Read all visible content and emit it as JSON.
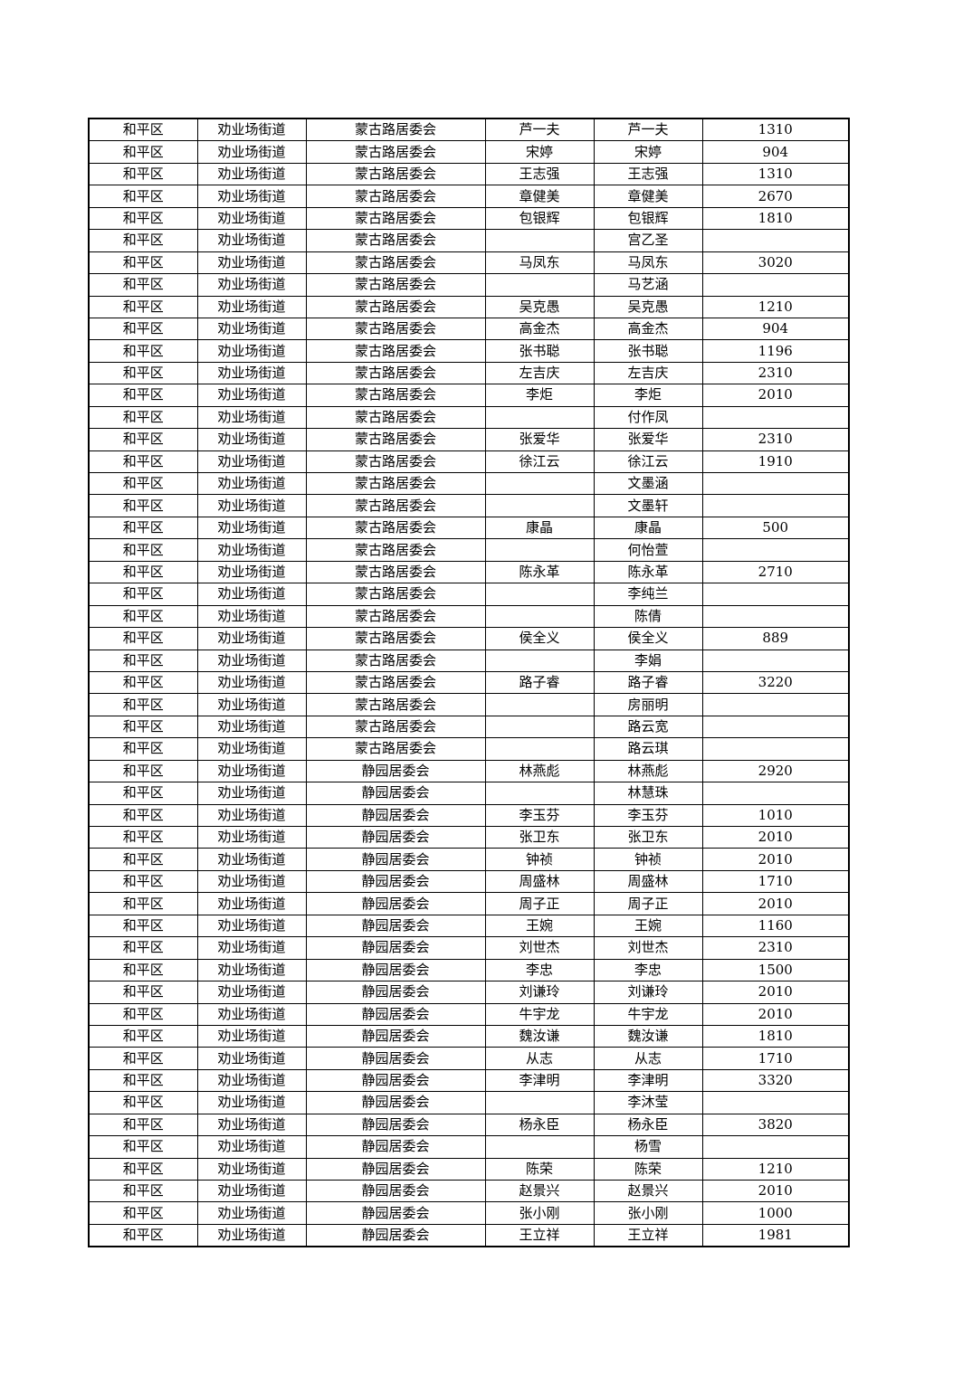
{
  "rows": [
    [
      "和平区",
      "劝业场街道",
      "蒙古路居委会",
      "芦一夫",
      "芦一夫",
      "1310"
    ],
    [
      "和平区",
      "劝业场街道",
      "蒙古路居委会",
      "宋婷",
      "宋婷",
      "904"
    ],
    [
      "和平区",
      "劝业场街道",
      "蒙古路居委会",
      "王志强",
      "王志强",
      "1310"
    ],
    [
      "和平区",
      "劝业场街道",
      "蒙古路居委会",
      "章健美",
      "章健美",
      "2670"
    ],
    [
      "和平区",
      "劝业场街道",
      "蒙古路居委会",
      "包银辉",
      "包银辉",
      "1810"
    ],
    [
      "和平区",
      "劝业场街道",
      "蒙古路居委会",
      "",
      "宫乙圣",
      ""
    ],
    [
      "和平区",
      "劝业场街道",
      "蒙古路居委会",
      "马凤东",
      "马凤东",
      "3020"
    ],
    [
      "和平区",
      "劝业场街道",
      "蒙古路居委会",
      "",
      "马艺涵",
      ""
    ],
    [
      "和平区",
      "劝业场街道",
      "蒙古路居委会",
      "吴克愚",
      "吴克愚",
      "1210"
    ],
    [
      "和平区",
      "劝业场街道",
      "蒙古路居委会",
      "高金杰",
      "高金杰",
      "904"
    ],
    [
      "和平区",
      "劝业场街道",
      "蒙古路居委会",
      "张书聪",
      "张书聪",
      "1196"
    ],
    [
      "和平区",
      "劝业场街道",
      "蒙古路居委会",
      "左吉庆",
      "左吉庆",
      "2310"
    ],
    [
      "和平区",
      "劝业场街道",
      "蒙古路居委会",
      "李炬",
      "李炬",
      "2010"
    ],
    [
      "和平区",
      "劝业场街道",
      "蒙古路居委会",
      "",
      "付作凤",
      ""
    ],
    [
      "和平区",
      "劝业场街道",
      "蒙古路居委会",
      "张爱华",
      "张爱华",
      "2310"
    ],
    [
      "和平区",
      "劝业场街道",
      "蒙古路居委会",
      "徐江云",
      "徐江云",
      "1910"
    ],
    [
      "和平区",
      "劝业场街道",
      "蒙古路居委会",
      "",
      "文墨涵",
      ""
    ],
    [
      "和平区",
      "劝业场街道",
      "蒙古路居委会",
      "",
      "文墨轩",
      ""
    ],
    [
      "和平区",
      "劝业场街道",
      "蒙古路居委会",
      "康晶",
      "康晶",
      "500"
    ],
    [
      "和平区",
      "劝业场街道",
      "蒙古路居委会",
      "",
      "何怡萱",
      ""
    ],
    [
      "和平区",
      "劝业场街道",
      "蒙古路居委会",
      "陈永革",
      "陈永革",
      "2710"
    ],
    [
      "和平区",
      "劝业场街道",
      "蒙古路居委会",
      "",
      "李纯兰",
      ""
    ],
    [
      "和平区",
      "劝业场街道",
      "蒙古路居委会",
      "",
      "陈倩",
      ""
    ],
    [
      "和平区",
      "劝业场街道",
      "蒙古路居委会",
      "侯全义",
      "侯全义",
      "889"
    ],
    [
      "和平区",
      "劝业场街道",
      "蒙古路居委会",
      "",
      "李娟",
      ""
    ],
    [
      "和平区",
      "劝业场街道",
      "蒙古路居委会",
      "路子睿",
      "路子睿",
      "3220"
    ],
    [
      "和平区",
      "劝业场街道",
      "蒙古路居委会",
      "",
      "房丽明",
      ""
    ],
    [
      "和平区",
      "劝业场街道",
      "蒙古路居委会",
      "",
      "路云宽",
      ""
    ],
    [
      "和平区",
      "劝业场街道",
      "蒙古路居委会",
      "",
      "路云琪",
      ""
    ],
    [
      "和平区",
      "劝业场街道",
      "静园居委会",
      "林燕彪",
      "林燕彪",
      "2920"
    ],
    [
      "和平区",
      "劝业场街道",
      "静园居委会",
      "",
      "林慧珠",
      ""
    ],
    [
      "和平区",
      "劝业场街道",
      "静园居委会",
      "李玉芬",
      "李玉芬",
      "1010"
    ],
    [
      "和平区",
      "劝业场街道",
      "静园居委会",
      "张卫东",
      "张卫东",
      "2010"
    ],
    [
      "和平区",
      "劝业场街道",
      "静园居委会",
      "钟祯",
      "钟祯",
      "2010"
    ],
    [
      "和平区",
      "劝业场街道",
      "静园居委会",
      "周盛林",
      "周盛林",
      "1710"
    ],
    [
      "和平区",
      "劝业场街道",
      "静园居委会",
      "周子正",
      "周子正",
      "2010"
    ],
    [
      "和平区",
      "劝业场街道",
      "静园居委会",
      "王婉",
      "王婉",
      "1160"
    ],
    [
      "和平区",
      "劝业场街道",
      "静园居委会",
      "刘世杰",
      "刘世杰",
      "2310"
    ],
    [
      "和平区",
      "劝业场街道",
      "静园居委会",
      "李忠",
      "李忠",
      "1500"
    ],
    [
      "和平区",
      "劝业场街道",
      "静园居委会",
      "刘谦玲",
      "刘谦玲",
      "2010"
    ],
    [
      "和平区",
      "劝业场街道",
      "静园居委会",
      "牛宇龙",
      "牛宇龙",
      "2010"
    ],
    [
      "和平区",
      "劝业场街道",
      "静园居委会",
      "魏汝谦",
      "魏汝谦",
      "1810"
    ],
    [
      "和平区",
      "劝业场街道",
      "静园居委会",
      "从志",
      "从志",
      "1710"
    ],
    [
      "和平区",
      "劝业场街道",
      "静园居委会",
      "李津明",
      "李津明",
      "3320"
    ],
    [
      "和平区",
      "劝业场街道",
      "静园居委会",
      "",
      "李沐莹",
      ""
    ],
    [
      "和平区",
      "劝业场街道",
      "静园居委会",
      "杨永臣",
      "杨永臣",
      "3820"
    ],
    [
      "和平区",
      "劝业场街道",
      "静园居委会",
      "",
      "杨雪",
      ""
    ],
    [
      "和平区",
      "劝业场街道",
      "静园居委会",
      "陈荣",
      "陈荣",
      "1210"
    ],
    [
      "和平区",
      "劝业场街道",
      "静园居委会",
      "赵景兴",
      "赵景兴",
      "2010"
    ],
    [
      "和平区",
      "劝业场街道",
      "静园居委会",
      "张小刚",
      "张小刚",
      "1000"
    ],
    [
      "和平区",
      "劝业场街道",
      "静园居委会",
      "王立祥",
      "王立祥",
      "1981"
    ]
  ]
}
